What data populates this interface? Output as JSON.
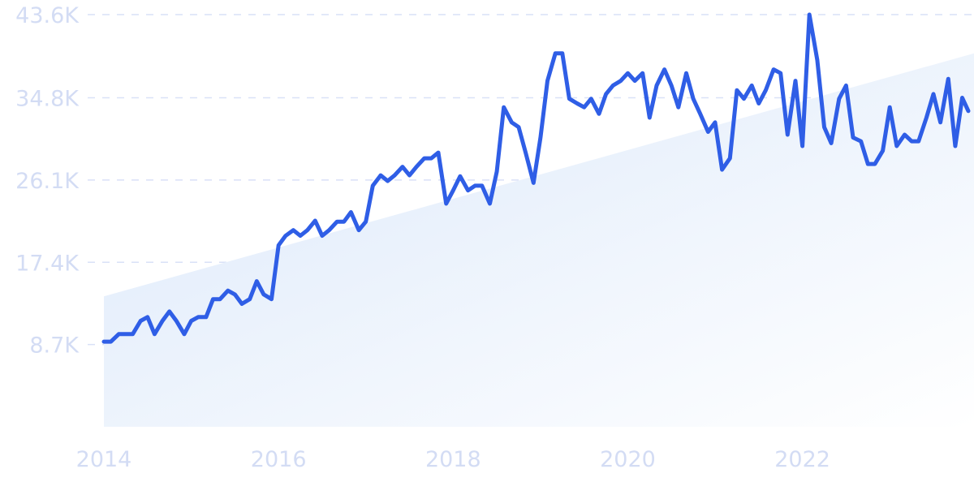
{
  "chart_data": {
    "type": "line",
    "title": "",
    "xlabel": "",
    "ylabel": "",
    "x_ticks": [
      "2014",
      "2016",
      "2018",
      "2020",
      "2022"
    ],
    "y_ticks": [
      "8.7K",
      "17.4K",
      "26.1K",
      "34.8K",
      "43.6K"
    ],
    "ylim": [
      0,
      43600
    ],
    "xlim": [
      2014.0,
      2023.9
    ],
    "grid": "horizontal dashed",
    "colors": {
      "line": "#2f5ee6",
      "trend_fill_left": "#dbe8fa",
      "trend_fill_right": "#ffffff",
      "tick_text": "#d3dcf4",
      "grid": "#d9e1f7"
    },
    "trend_band": {
      "start": [
        2014.0,
        13800
      ],
      "end": [
        2023.9,
        39500
      ]
    },
    "series": [
      {
        "name": "",
        "points": [
          [
            2014.0,
            9000
          ],
          [
            2014.08,
            9000
          ],
          [
            2014.17,
            9800
          ],
          [
            2014.25,
            9800
          ],
          [
            2014.33,
            9800
          ],
          [
            2014.42,
            11200
          ],
          [
            2014.5,
            11600
          ],
          [
            2014.58,
            9800
          ],
          [
            2014.67,
            11200
          ],
          [
            2014.75,
            12200
          ],
          [
            2014.83,
            11200
          ],
          [
            2014.92,
            9800
          ],
          [
            2015.0,
            11200
          ],
          [
            2015.08,
            11600
          ],
          [
            2015.17,
            11600
          ],
          [
            2015.25,
            13500
          ],
          [
            2015.33,
            13500
          ],
          [
            2015.42,
            14400
          ],
          [
            2015.5,
            14000
          ],
          [
            2015.58,
            13000
          ],
          [
            2015.67,
            13500
          ],
          [
            2015.75,
            15400
          ],
          [
            2015.83,
            14000
          ],
          [
            2015.92,
            13500
          ],
          [
            2016.0,
            19200
          ],
          [
            2016.08,
            20200
          ],
          [
            2016.17,
            20800
          ],
          [
            2016.25,
            20200
          ],
          [
            2016.33,
            20800
          ],
          [
            2016.42,
            21800
          ],
          [
            2016.5,
            20200
          ],
          [
            2016.58,
            20800
          ],
          [
            2016.67,
            21700
          ],
          [
            2016.75,
            21700
          ],
          [
            2016.83,
            22700
          ],
          [
            2016.92,
            20800
          ],
          [
            2017.0,
            21700
          ],
          [
            2017.08,
            25500
          ],
          [
            2017.17,
            26600
          ],
          [
            2017.25,
            26000
          ],
          [
            2017.33,
            26600
          ],
          [
            2017.42,
            27500
          ],
          [
            2017.5,
            26600
          ],
          [
            2017.58,
            27500
          ],
          [
            2017.67,
            28400
          ],
          [
            2017.75,
            28400
          ],
          [
            2017.83,
            29000
          ],
          [
            2017.92,
            23600
          ],
          [
            2018.0,
            25000
          ],
          [
            2018.08,
            26500
          ],
          [
            2018.17,
            25000
          ],
          [
            2018.25,
            25500
          ],
          [
            2018.33,
            25500
          ],
          [
            2018.42,
            23600
          ],
          [
            2018.5,
            27000
          ],
          [
            2018.58,
            33800
          ],
          [
            2018.67,
            32200
          ],
          [
            2018.75,
            31700
          ],
          [
            2018.83,
            29000
          ],
          [
            2018.92,
            25800
          ],
          [
            2019.0,
            30600
          ],
          [
            2019.08,
            36600
          ],
          [
            2019.17,
            39500
          ],
          [
            2019.25,
            39500
          ],
          [
            2019.33,
            34700
          ],
          [
            2019.42,
            34200
          ],
          [
            2019.5,
            33800
          ],
          [
            2019.58,
            34700
          ],
          [
            2019.67,
            33100
          ],
          [
            2019.75,
            35200
          ],
          [
            2019.83,
            36100
          ],
          [
            2019.92,
            36600
          ],
          [
            2020.0,
            37400
          ],
          [
            2020.08,
            36600
          ],
          [
            2020.17,
            37400
          ],
          [
            2020.25,
            32700
          ],
          [
            2020.33,
            36100
          ],
          [
            2020.42,
            37800
          ],
          [
            2020.5,
            36100
          ],
          [
            2020.58,
            33800
          ],
          [
            2020.67,
            37400
          ],
          [
            2020.75,
            34700
          ],
          [
            2020.83,
            33100
          ],
          [
            2020.92,
            31200
          ],
          [
            2021.0,
            32200
          ],
          [
            2021.08,
            27200
          ],
          [
            2021.17,
            28400
          ],
          [
            2021.25,
            35600
          ],
          [
            2021.33,
            34700
          ],
          [
            2021.42,
            36100
          ],
          [
            2021.5,
            34200
          ],
          [
            2021.58,
            35600
          ],
          [
            2021.67,
            37800
          ],
          [
            2021.75,
            37400
          ],
          [
            2021.83,
            30900
          ],
          [
            2021.92,
            36600
          ],
          [
            2022.0,
            29700
          ],
          [
            2022.08,
            43600
          ],
          [
            2022.17,
            38800
          ],
          [
            2022.25,
            31700
          ],
          [
            2022.33,
            30000
          ],
          [
            2022.42,
            34700
          ],
          [
            2022.5,
            36100
          ],
          [
            2022.58,
            30600
          ],
          [
            2022.67,
            30200
          ],
          [
            2022.75,
            27800
          ],
          [
            2022.83,
            27800
          ],
          [
            2022.92,
            29200
          ],
          [
            2023.0,
            33800
          ],
          [
            2023.08,
            29700
          ],
          [
            2023.17,
            30900
          ],
          [
            2023.25,
            30200
          ],
          [
            2023.33,
            30200
          ],
          [
            2023.42,
            32700
          ],
          [
            2023.5,
            35200
          ],
          [
            2023.58,
            32200
          ],
          [
            2023.67,
            36800
          ],
          [
            2023.75,
            29700
          ],
          [
            2023.83,
            34800
          ],
          [
            2023.9,
            33400
          ]
        ]
      }
    ]
  }
}
